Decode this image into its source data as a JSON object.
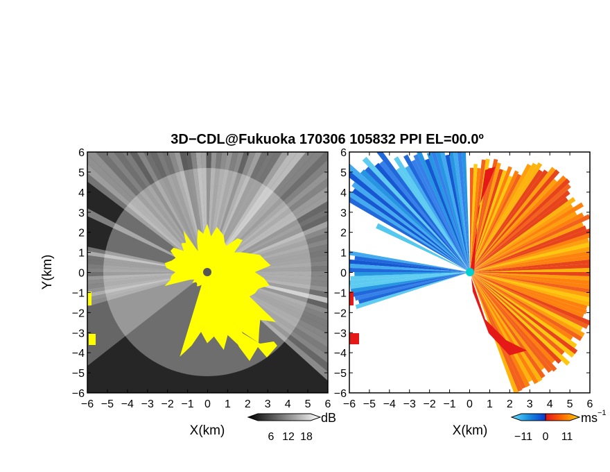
{
  "title": "3D−CDL@Fukuoka 170306 105832 PPI EL=00.0º",
  "chart_data": [
    {
      "type": "heatmap",
      "name": "reflectivity-ppi",
      "x_ticks": [
        "−6",
        "−5",
        "−4",
        "−3",
        "−2",
        "−1",
        "0",
        "1",
        "2",
        "3",
        "4",
        "5",
        "6"
      ],
      "y_ticks": [
        "6",
        "5",
        "4",
        "3",
        "2",
        "1",
        "0",
        "−1",
        "−2",
        "−3",
        "−4",
        "−5",
        "−6"
      ],
      "xlim": [
        -6,
        6
      ],
      "ylim": [
        -6,
        6
      ],
      "xlabel": "X(km)",
      "ylabel": "Y(km)",
      "colorbar": {
        "unit": "dB",
        "ticks": [
          "6",
          "12",
          "18"
        ],
        "range": [
          0,
          24
        ]
      },
      "colors": {
        "background": "#262626",
        "echo": "#e6e6e6",
        "highlight": "#ffff00",
        "radar_dot": "#555555"
      }
    },
    {
      "type": "heatmap",
      "name": "doppler-velocity-ppi",
      "x_ticks": [
        "−6",
        "−5",
        "−4",
        "−3",
        "−2",
        "−1",
        "0",
        "1",
        "2",
        "3",
        "4",
        "5",
        "6"
      ],
      "y_ticks": [
        "6",
        "5",
        "4",
        "3",
        "2",
        "1",
        "0",
        "−1",
        "−2",
        "−3",
        "−4",
        "−5",
        "−6"
      ],
      "xlim": [
        -6,
        6
      ],
      "ylim": [
        -6,
        6
      ],
      "xlabel": "X(km)",
      "ylabel": "",
      "colorbar": {
        "unit": "ms",
        "unit_exp": "−1",
        "ticks": [
          "−11",
          "0",
          "11"
        ],
        "range": [
          -16,
          16
        ]
      },
      "colors": {
        "negative": "#1a6fe0",
        "negative_light": "#55c8f0",
        "positive": "#f25a10",
        "positive_light": "#ffb000",
        "near_zero": "#e61919",
        "radar_dot": "#00d0d0"
      }
    }
  ]
}
